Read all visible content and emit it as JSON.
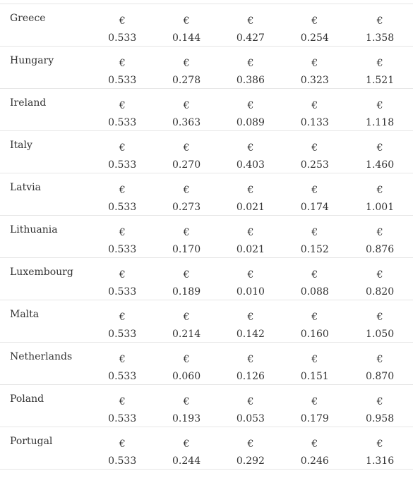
{
  "currency_symbol": "€",
  "rows": [
    {
      "country": "Greece",
      "values": [
        "0.533",
        "0.144",
        "0.427",
        "0.254",
        "1.358"
      ]
    },
    {
      "country": "Hungary",
      "values": [
        "0.533",
        "0.278",
        "0.386",
        "0.323",
        "1.521"
      ]
    },
    {
      "country": "Ireland",
      "values": [
        "0.533",
        "0.363",
        "0.089",
        "0.133",
        "1.118"
      ]
    },
    {
      "country": "Italy",
      "values": [
        "0.533",
        "0.270",
        "0.403",
        "0.253",
        "1.460"
      ]
    },
    {
      "country": "Latvia",
      "values": [
        "0.533",
        "0.273",
        "0.021",
        "0.174",
        "1.001"
      ]
    },
    {
      "country": "Lithuania",
      "values": [
        "0.533",
        "0.170",
        "0.021",
        "0.152",
        "0.876"
      ]
    },
    {
      "country": "Luxembourg",
      "values": [
        "0.533",
        "0.189",
        "0.010",
        "0.088",
        "0.820"
      ]
    },
    {
      "country": "Malta",
      "values": [
        "0.533",
        "0.214",
        "0.142",
        "0.160",
        "1.050"
      ]
    },
    {
      "country": "Netherlands",
      "values": [
        "0.533",
        "0.060",
        "0.126",
        "0.151",
        "0.870"
      ]
    },
    {
      "country": "Poland",
      "values": [
        "0.533",
        "0.193",
        "0.053",
        "0.179",
        "0.958"
      ]
    },
    {
      "country": "Portugal",
      "values": [
        "0.533",
        "0.244",
        "0.292",
        "0.246",
        "1.316"
      ]
    }
  ]
}
